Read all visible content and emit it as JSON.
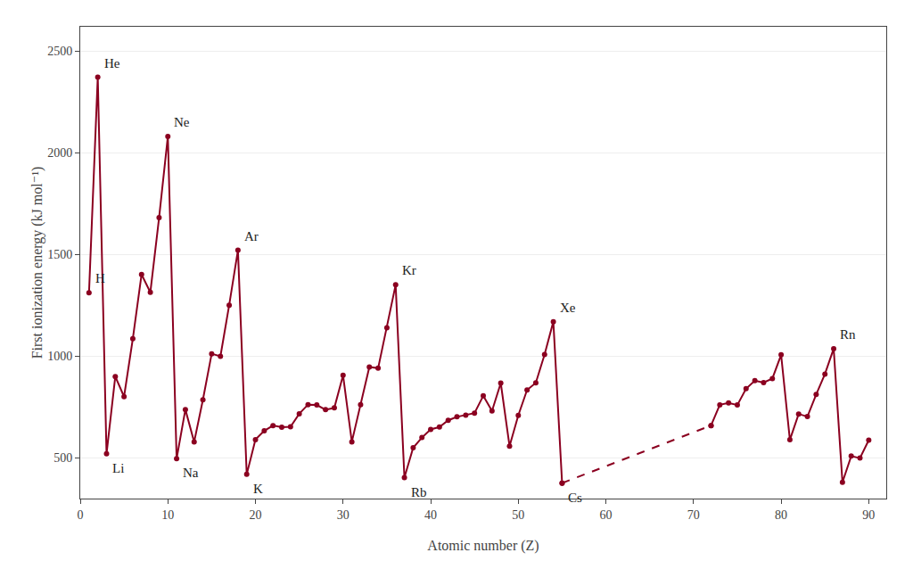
{
  "chart_data": {
    "type": "line",
    "xlabel": "Atomic number (Z)",
    "ylabel": "First ionization energy (kJ mol⁻¹)",
    "xlim": [
      0,
      92
    ],
    "ylim": [
      300,
      2620
    ],
    "xticks": [
      0,
      10,
      20,
      30,
      40,
      50,
      60,
      70,
      80,
      90
    ],
    "yticks": [
      500,
      1000,
      1500,
      2000,
      2500
    ],
    "grid": "y",
    "series": [
      {
        "color": "#8b0020",
        "line_style": "solid",
        "marker": "circle",
        "x": [
          1,
          2,
          3,
          4,
          5,
          6,
          7,
          8,
          9,
          10,
          11,
          12,
          13,
          14,
          15,
          16,
          17,
          18,
          19,
          20,
          21,
          22,
          23,
          24,
          25,
          26,
          27,
          28,
          29,
          30,
          31,
          32,
          33,
          34,
          35,
          36,
          37,
          38,
          39,
          40,
          41,
          42,
          43,
          44,
          45,
          46,
          47,
          48,
          49,
          50,
          51,
          52,
          53,
          54,
          55
        ],
        "values": [
          1312,
          2372,
          520,
          900,
          801,
          1086,
          1402,
          1314,
          1681,
          2081,
          496,
          738,
          578,
          786,
          1012,
          1000,
          1251,
          1521,
          419,
          590,
          633,
          659,
          651,
          653,
          717,
          762,
          760,
          737,
          746,
          906,
          579,
          762,
          947,
          941,
          1140,
          1351,
          403,
          550,
          600,
          640,
          652,
          685,
          702,
          710,
          720,
          805,
          731,
          868,
          558,
          709,
          834,
          869,
          1008,
          1170,
          376
        ]
      },
      {
        "color": "#8b0020",
        "line_style": "dashed",
        "marker": "circle",
        "x": [
          55,
          72
        ],
        "values": [
          376,
          659
        ]
      },
      {
        "color": "#8b0020",
        "line_style": "solid",
        "marker": "circle",
        "x": [
          72,
          73,
          74,
          75,
          76,
          77,
          78,
          79,
          80,
          81,
          82,
          83,
          84,
          85,
          86,
          87,
          88,
          89,
          90
        ],
        "values": [
          659,
          761,
          770,
          760,
          840,
          880,
          870,
          890,
          1007,
          589,
          716,
          703,
          812,
          912,
          1037,
          380,
          509,
          499,
          587
        ]
      }
    ],
    "annotations": [
      {
        "text": "H",
        "x": 1,
        "y": 1312
      },
      {
        "text": "He",
        "x": 2,
        "y": 2372
      },
      {
        "text": "Li",
        "x": 3,
        "y": 520
      },
      {
        "text": "Ne",
        "x": 10,
        "y": 2081
      },
      {
        "text": "Na",
        "x": 11,
        "y": 496
      },
      {
        "text": "Ar",
        "x": 18,
        "y": 1521
      },
      {
        "text": "K",
        "x": 19,
        "y": 419
      },
      {
        "text": "Kr",
        "x": 36,
        "y": 1351
      },
      {
        "text": "Rb",
        "x": 37,
        "y": 403
      },
      {
        "text": "Xe",
        "x": 54,
        "y": 1170
      },
      {
        "text": "Cs",
        "x": 55,
        "y": 376
      },
      {
        "text": "Rn",
        "x": 86,
        "y": 1037
      }
    ]
  }
}
